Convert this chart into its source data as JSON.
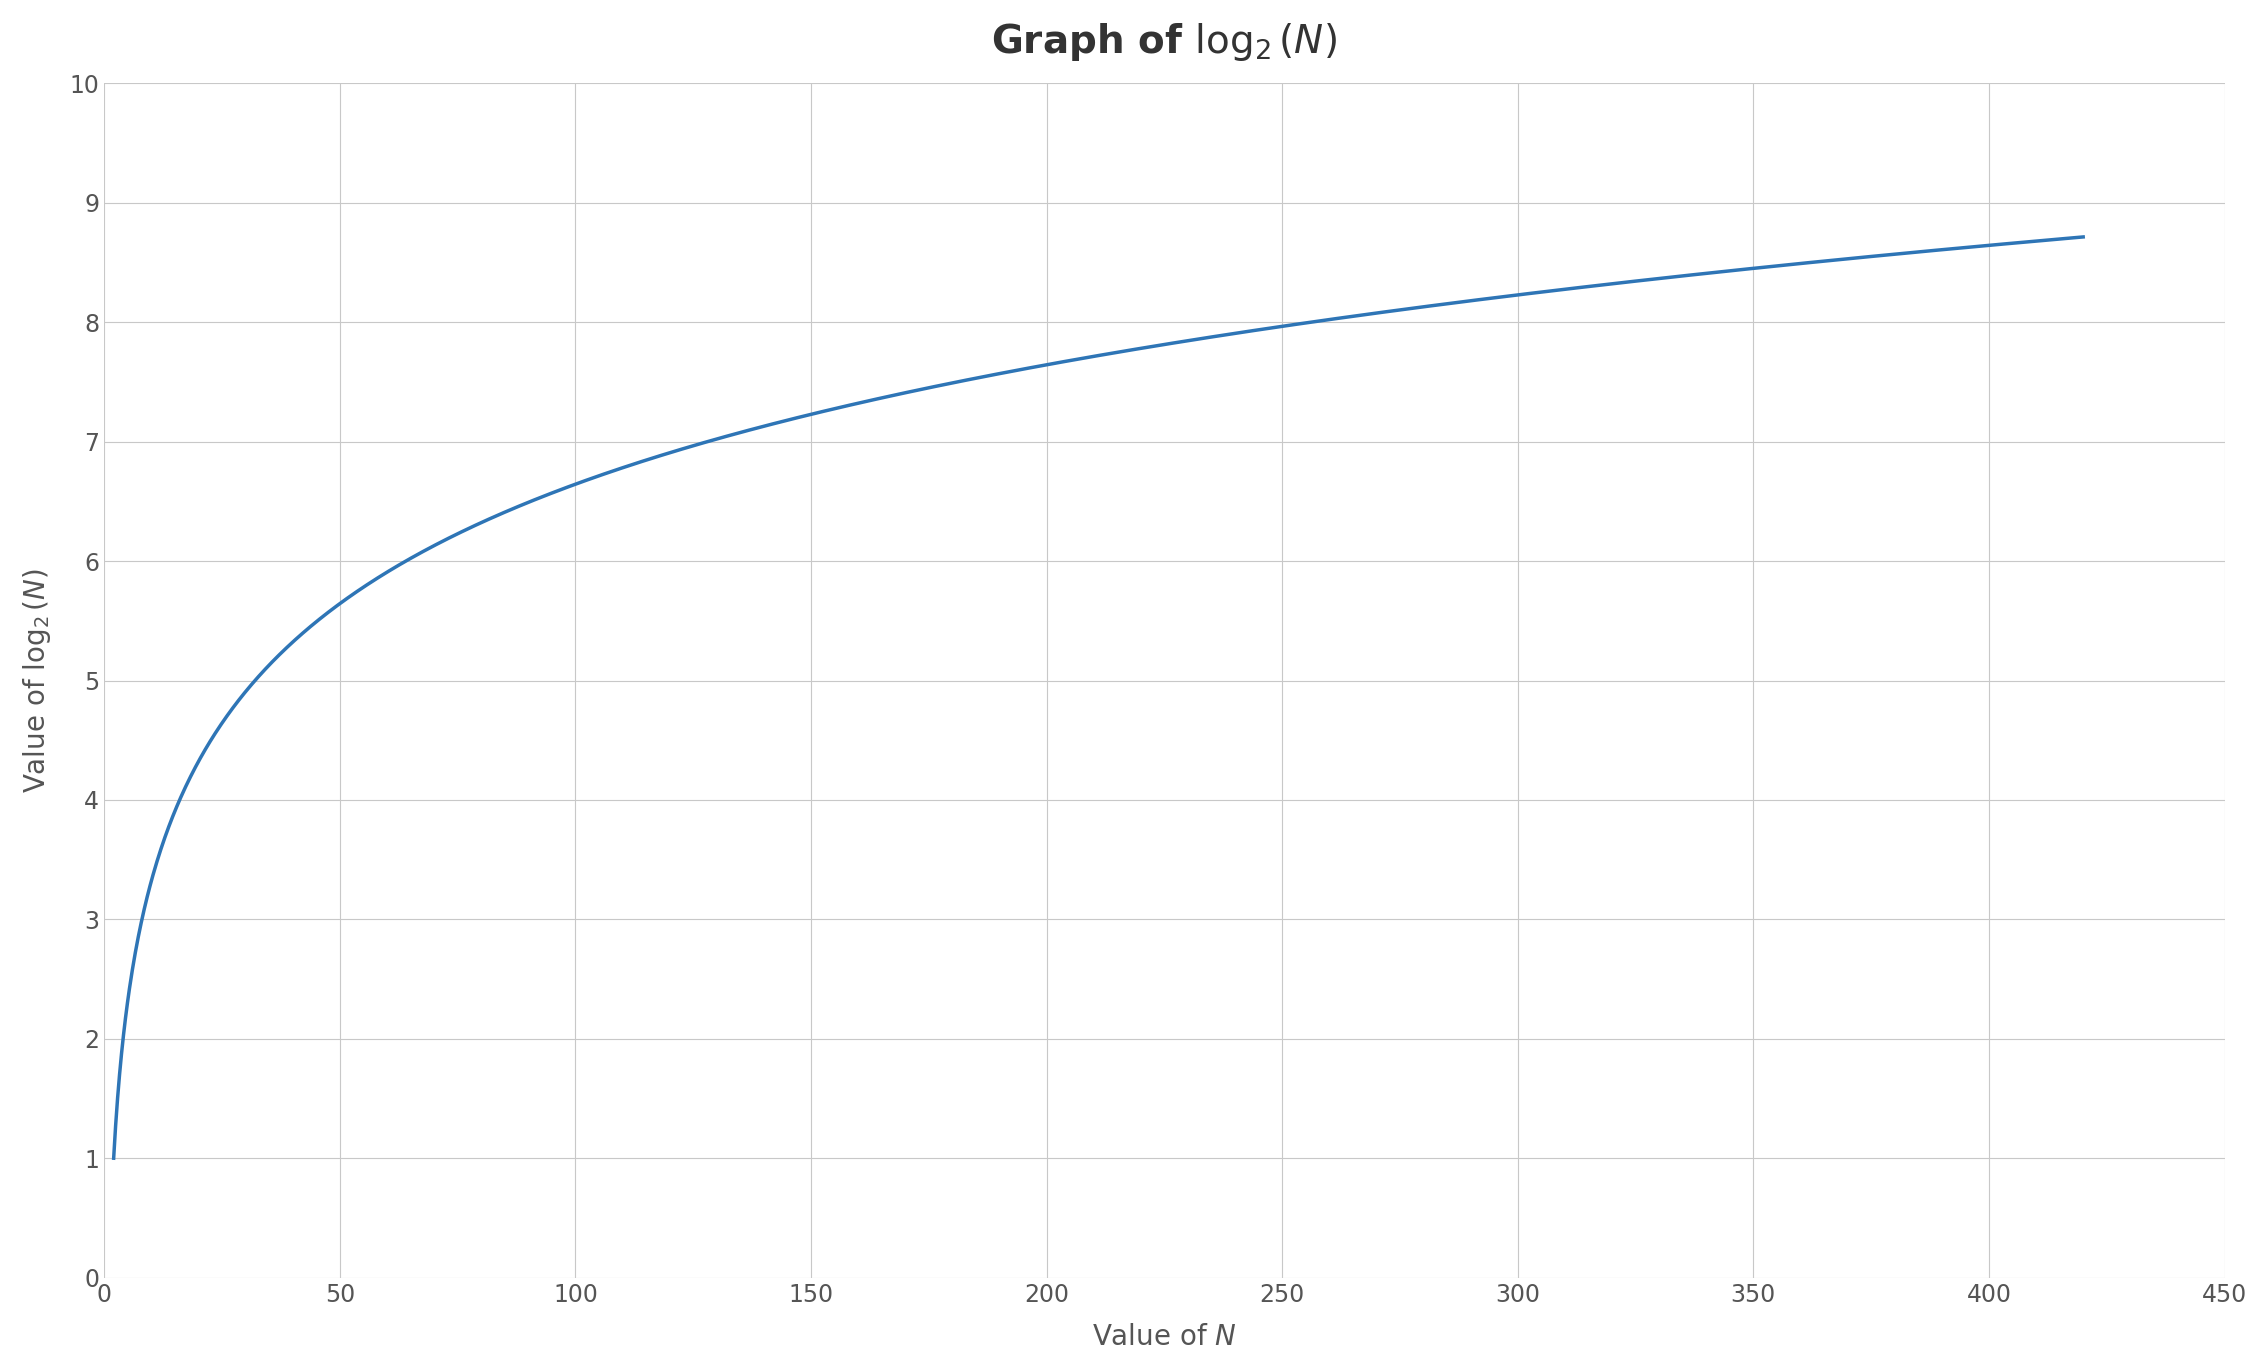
{
  "xlim": [
    0,
    450
  ],
  "ylim": [
    0,
    10
  ],
  "xticks": [
    0,
    50,
    100,
    150,
    200,
    250,
    300,
    350,
    400,
    450
  ],
  "yticks": [
    0,
    1,
    2,
    3,
    4,
    5,
    6,
    7,
    8,
    9,
    10
  ],
  "x_start": 2,
  "x_end": 420,
  "line_color": "#2E75B6",
  "line_width": 2.5,
  "grid_color": "#C8C8C8",
  "background_color": "#FFFFFF",
  "title_fontsize": 28,
  "label_fontsize": 20,
  "tick_fontsize": 17,
  "tick_color": "#555555"
}
